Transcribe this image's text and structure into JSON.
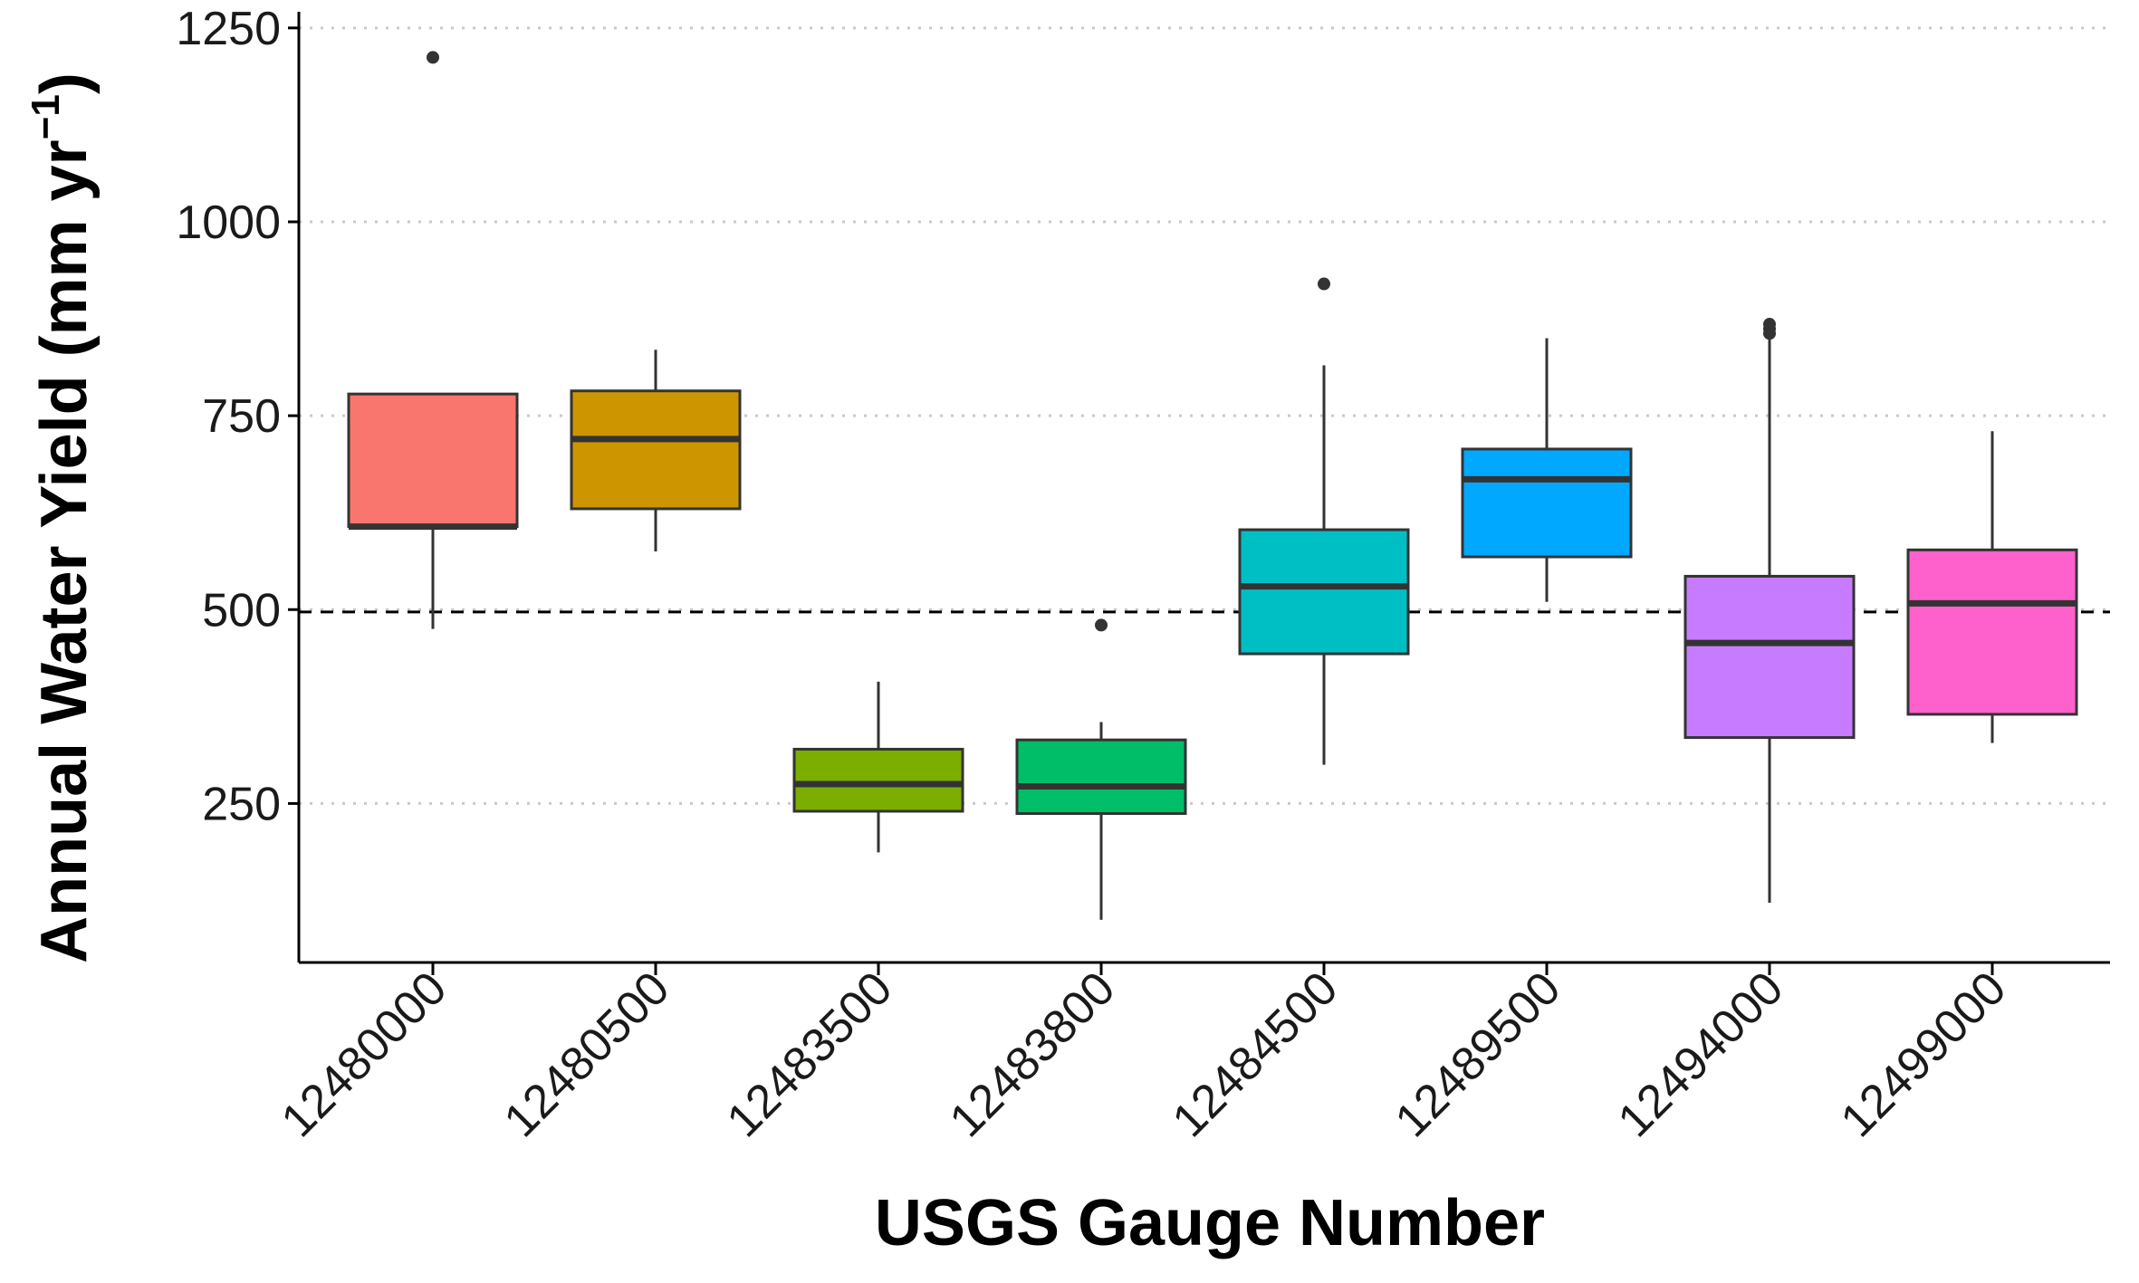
{
  "chart_data": {
    "type": "boxplot",
    "xlabel": "USGS Gauge Number",
    "ylabel": "Annual Water Yield (mm yr",
    "ylabel_superscript": "−1",
    "ylabel_close": ")",
    "ylim": [
      45,
      1265
    ],
    "yticks": [
      250,
      500,
      750,
      1000,
      1250
    ],
    "grid": "horizontal dotted major gridlines",
    "reference_line": {
      "value": 497,
      "style": "dashed"
    },
    "categories": [
      "12480000",
      "12480500",
      "12483500",
      "12483800",
      "12484500",
      "12489500",
      "12494000",
      "12499000"
    ],
    "boxes": [
      {
        "name": "12480000",
        "color": "#F8766D",
        "whisker_low": 475,
        "q1": 607,
        "median": 607,
        "q3": 778,
        "whisker_high": 778,
        "outliers": [
          1212
        ]
      },
      {
        "name": "12480500",
        "color": "#CD9600",
        "whisker_low": 575,
        "q1": 630,
        "median": 720,
        "q3": 782,
        "whisker_high": 835,
        "outliers": []
      },
      {
        "name": "12483500",
        "color": "#7CAE00",
        "whisker_low": 187,
        "q1": 240,
        "median": 275,
        "q3": 320,
        "whisker_high": 407,
        "outliers": []
      },
      {
        "name": "12483800",
        "color": "#00BE67",
        "whisker_low": 100,
        "q1": 237,
        "median": 272,
        "q3": 332,
        "whisker_high": 355,
        "outliers": [
          480
        ]
      },
      {
        "name": "12484500",
        "color": "#00BFC4",
        "whisker_low": 300,
        "q1": 443,
        "median": 530,
        "q3": 603,
        "whisker_high": 815,
        "outliers": [
          920
        ]
      },
      {
        "name": "12489500",
        "color": "#00A9FF",
        "whisker_low": 510,
        "q1": 568,
        "median": 668,
        "q3": 707,
        "whisker_high": 850,
        "outliers": []
      },
      {
        "name": "12494000",
        "color": "#C77CFF",
        "whisker_low": 122,
        "q1": 335,
        "median": 457,
        "q3": 543,
        "whisker_high": 850,
        "outliers": [
          856,
          862,
          868
        ]
      },
      {
        "name": "12499000",
        "color": "#FF61CC",
        "whisker_low": 328,
        "q1": 365,
        "median": 508,
        "q3": 577,
        "whisker_high": 730,
        "outliers": []
      }
    ]
  }
}
